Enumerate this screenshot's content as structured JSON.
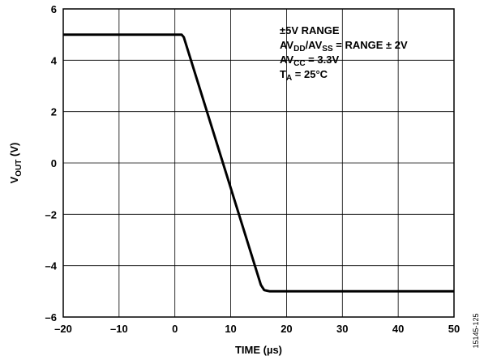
{
  "chart_data": {
    "type": "line",
    "xlabel": "TIME (µs)",
    "ylabel": {
      "main": "V",
      "sub": "OUT",
      "unit": " (V)"
    },
    "xlim": [
      -20,
      50
    ],
    "ylim": [
      -6,
      6
    ],
    "x_ticks": [
      -20,
      -10,
      0,
      10,
      20,
      30,
      40,
      50
    ],
    "x_tick_labels": [
      "–20",
      "–10",
      "0",
      "10",
      "20",
      "30",
      "40",
      "50"
    ],
    "y_ticks": [
      -6,
      -4,
      -2,
      0,
      2,
      4,
      6
    ],
    "y_tick_labels": [
      "–6",
      "–4",
      "–2",
      "0",
      "2",
      "4",
      "6"
    ],
    "grid": true,
    "series": [
      {
        "x": [
          -20,
          1.2,
          1.6,
          15.4,
          16,
          17,
          50
        ],
        "y": [
          5.0,
          5.0,
          4.9,
          -4.75,
          -4.95,
          -5.0,
          -5.0
        ]
      }
    ],
    "annotations": [
      [
        {
          "t": "±5V RANGE"
        }
      ],
      [
        {
          "t": "AV"
        },
        {
          "t": "DD",
          "sub": true
        },
        {
          "t": "/AV"
        },
        {
          "t": "SS",
          "sub": true
        },
        {
          "t": " = RANGE ± 2V"
        }
      ],
      [
        {
          "t": "AV"
        },
        {
          "t": "CC",
          "sub": true
        },
        {
          "t": " = 3.3V"
        }
      ],
      [
        {
          "t": "T"
        },
        {
          "t": "A",
          "sub": true
        },
        {
          "t": " = 25°C"
        }
      ]
    ],
    "figure_id": "15145-125"
  },
  "colors": {
    "line": "#000000",
    "grid": "#000000",
    "frame": "#000000"
  }
}
